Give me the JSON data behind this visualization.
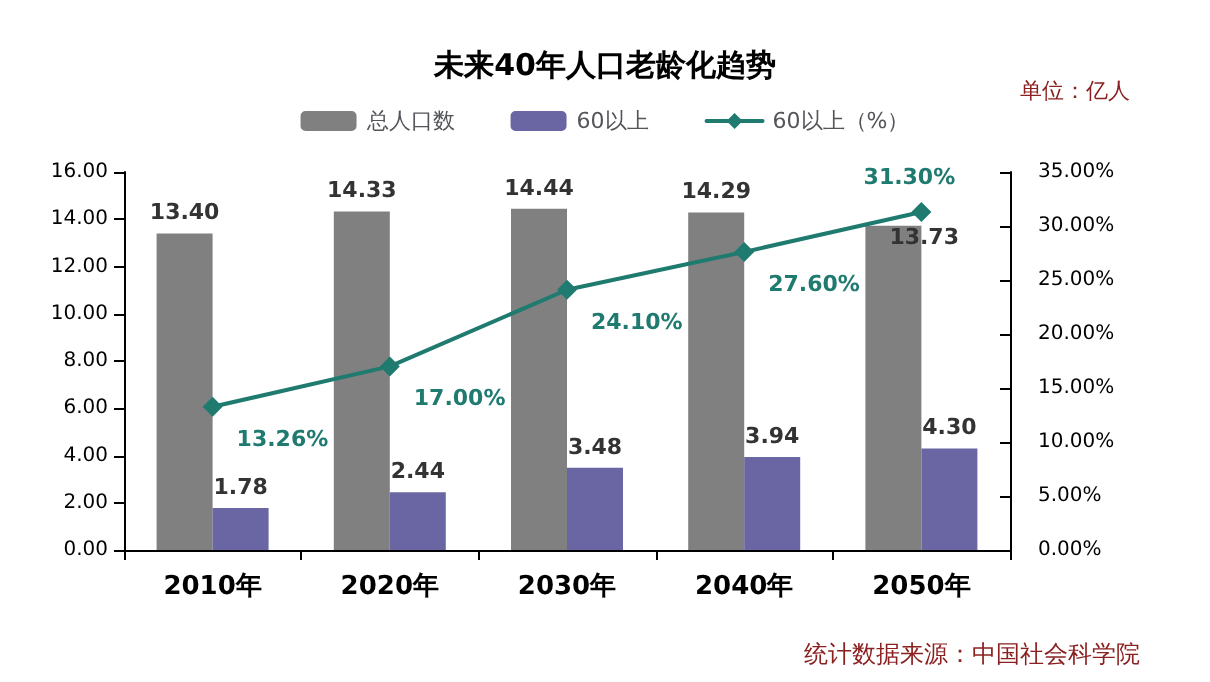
{
  "chart_data": {
    "type": "bar",
    "title": "未来40年人口老龄化趋势",
    "annotations": [
      "单位：亿人",
      "统计数据来源：中国社会科学院"
    ],
    "categories": [
      "2010年",
      "2020年",
      "2030年",
      "2040年",
      "2050年"
    ],
    "series": [
      {
        "name": "总人口数",
        "color": "#808080",
        "values": [
          13.4,
          14.33,
          14.44,
          14.29,
          13.73
        ],
        "value_labels": [
          "13.40",
          "14.33",
          "14.44",
          "14.29",
          "13.73"
        ]
      },
      {
        "name": "60以上",
        "color": "#6a66a3",
        "values": [
          1.78,
          2.44,
          3.48,
          3.94,
          4.3
        ],
        "value_labels": [
          "1.78",
          "2.44",
          "3.48",
          "3.94",
          "4.30"
        ]
      },
      {
        "name": "60以上（%）",
        "type": "line",
        "axis": "y2",
        "color": "#1f7a70",
        "values": [
          13.26,
          17.0,
          24.1,
          27.6,
          31.3
        ],
        "value_labels": [
          "13.26%",
          "17.00%",
          "24.10%",
          "27.60%",
          "31.30%"
        ]
      }
    ],
    "ylim": [
      0,
      16
    ],
    "yticks": [
      {
        "value": 0,
        "label": "0.00"
      },
      {
        "value": 2,
        "label": "2.00"
      },
      {
        "value": 4,
        "label": "4.00"
      },
      {
        "value": 6,
        "label": "6.00"
      },
      {
        "value": 8,
        "label": "8.00"
      },
      {
        "value": 10,
        "label": "10.00"
      },
      {
        "value": 12,
        "label": "12.00"
      },
      {
        "value": 14,
        "label": "14.00"
      },
      {
        "value": 16,
        "label": "16.00"
      }
    ],
    "y2lim": [
      0,
      35
    ],
    "y2ticks": [
      {
        "value": 0,
        "label": "0.00%"
      },
      {
        "value": 5,
        "label": "5.00%"
      },
      {
        "value": 10,
        "label": "10.00%"
      },
      {
        "value": 15,
        "label": "15.00%"
      },
      {
        "value": 20,
        "label": "20.00%"
      },
      {
        "value": 25,
        "label": "25.00%"
      },
      {
        "value": 30,
        "label": "30.00%"
      },
      {
        "value": 35,
        "label": "35.00%"
      }
    ],
    "legend": "top",
    "grid": false,
    "marker": "diamond"
  }
}
